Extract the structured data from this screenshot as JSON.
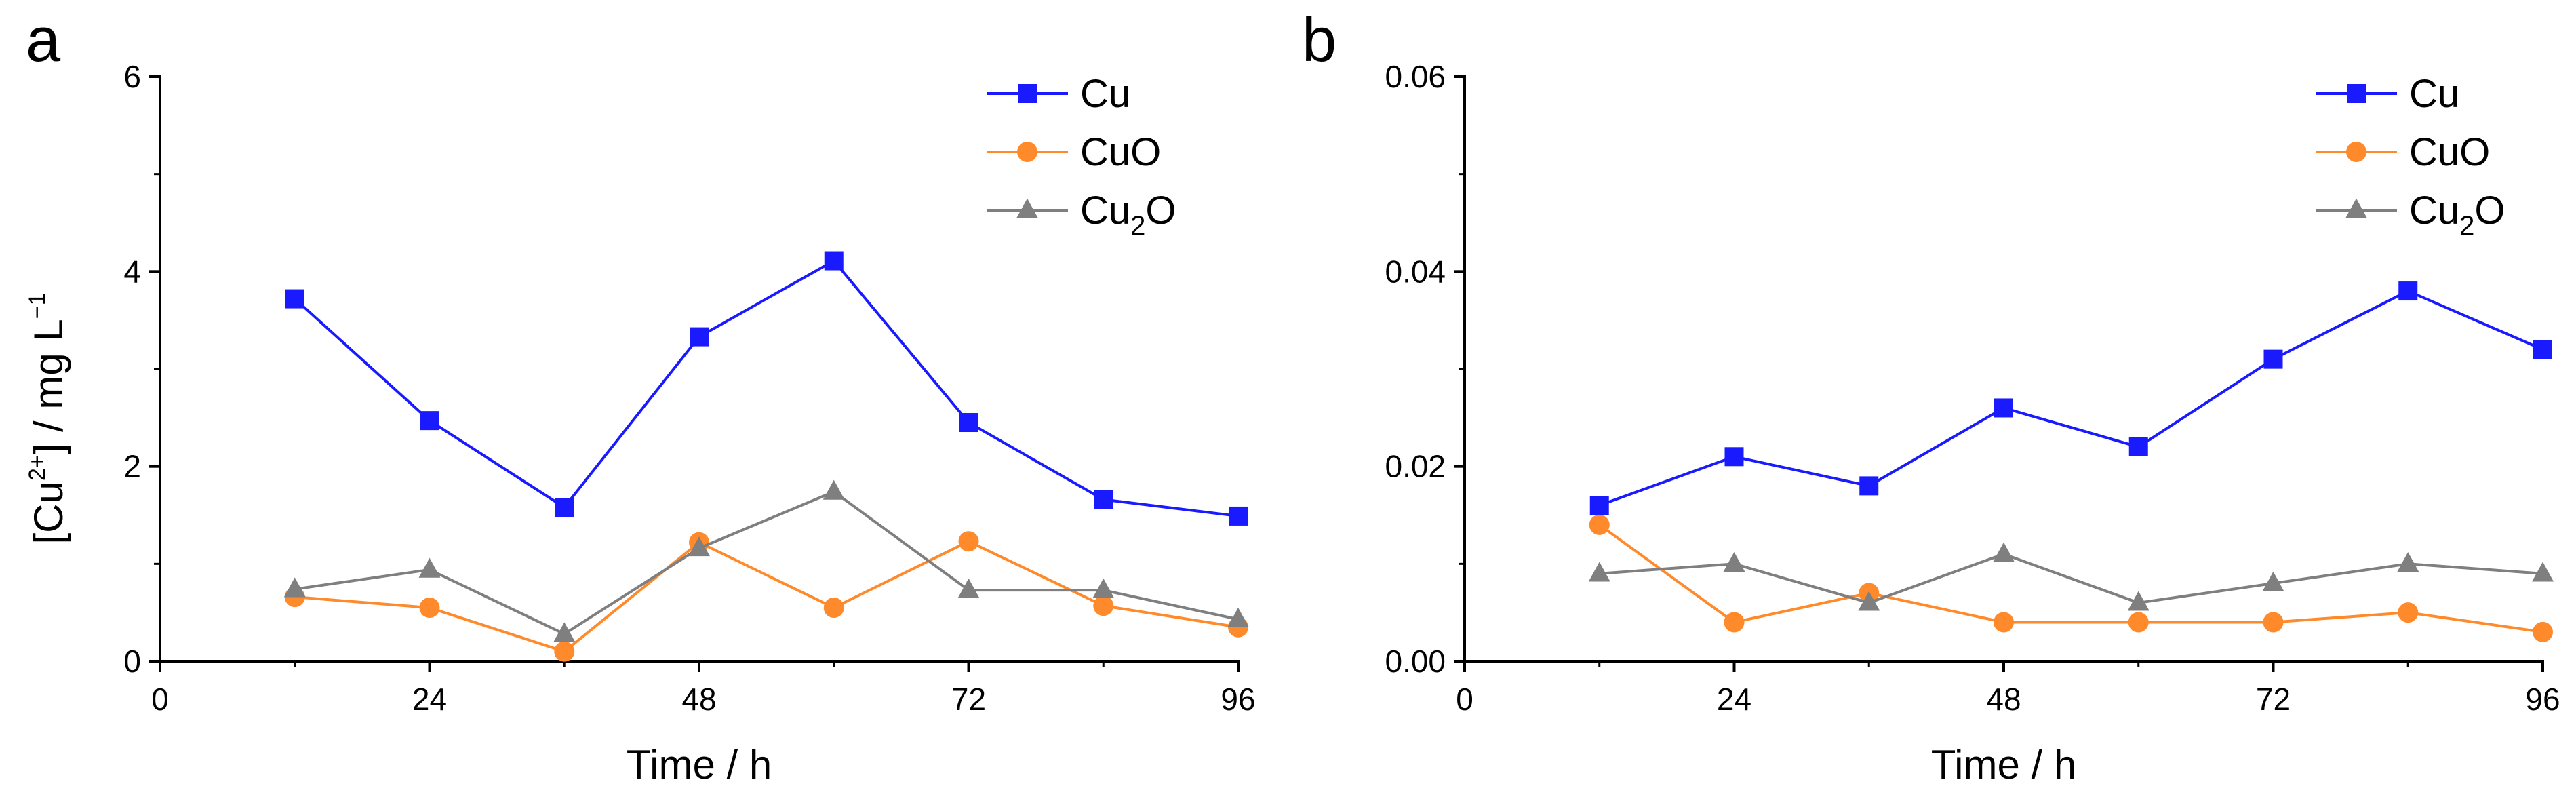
{
  "figure": {
    "ylabel_base": "[Cu",
    "ylabel_sup": "2+",
    "ylabel_tail": "] / mg L",
    "ylabel_unit_sup": "−1"
  },
  "chart_data": [
    {
      "type": "line",
      "panel_label": "a",
      "xlabel": "Time / h",
      "ylabel": "[Cu2+] / mg L−1",
      "xlim": [
        0,
        96
      ],
      "ylim": [
        0,
        6
      ],
      "xticks": [
        0,
        24,
        48,
        72,
        96
      ],
      "xtick_labels": [
        "0",
        "24",
        "48",
        "72",
        "96"
      ],
      "yticks": [
        0,
        2,
        4,
        6
      ],
      "ytick_labels": [
        "0",
        "2",
        "4",
        "6"
      ],
      "grid": false,
      "legend_position": "top-right",
      "x": [
        12,
        24,
        36,
        48,
        60,
        72,
        84,
        96
      ],
      "series": [
        {
          "name": "Cu",
          "color": "#1a1aff",
          "marker": "square",
          "values": [
            3.72,
            2.47,
            1.58,
            3.33,
            4.11,
            2.45,
            1.66,
            1.49
          ]
        },
        {
          "name": "CuO",
          "color": "#ff8a2b",
          "marker": "circle",
          "values": [
            0.66,
            0.55,
            0.1,
            1.22,
            0.55,
            1.23,
            0.57,
            0.35
          ]
        },
        {
          "name": "Cu2O",
          "color": "#7f7f7f",
          "marker": "triangle",
          "values": [
            0.74,
            0.94,
            0.28,
            1.16,
            1.74,
            0.73,
            0.73,
            0.43
          ]
        }
      ]
    },
    {
      "type": "line",
      "panel_label": "b",
      "xlabel": "Time / h",
      "ylabel": "",
      "xlim": [
        0,
        96
      ],
      "ylim": [
        0,
        0.06
      ],
      "xticks": [
        0,
        24,
        48,
        72,
        96
      ],
      "xtick_labels": [
        "0",
        "24",
        "48",
        "72",
        "96"
      ],
      "yticks": [
        0,
        0.02,
        0.04,
        0.06
      ],
      "ytick_labels": [
        "0.00",
        "0.02",
        "0.04",
        "0.06"
      ],
      "grid": false,
      "legend_position": "top-right",
      "x": [
        12,
        24,
        36,
        48,
        60,
        72,
        84,
        96
      ],
      "series": [
        {
          "name": "Cu",
          "color": "#1a1aff",
          "marker": "square",
          "values": [
            0.016,
            0.021,
            0.018,
            0.026,
            0.022,
            0.031,
            0.038,
            0.032
          ]
        },
        {
          "name": "CuO",
          "color": "#ff8a2b",
          "marker": "circle",
          "values": [
            0.014,
            0.004,
            0.007,
            0.004,
            0.004,
            0.004,
            0.005,
            0.003
          ]
        },
        {
          "name": "Cu2O",
          "color": "#7f7f7f",
          "marker": "triangle",
          "values": [
            0.009,
            0.01,
            0.006,
            0.011,
            0.006,
            0.008,
            0.01,
            0.009
          ]
        }
      ]
    }
  ]
}
